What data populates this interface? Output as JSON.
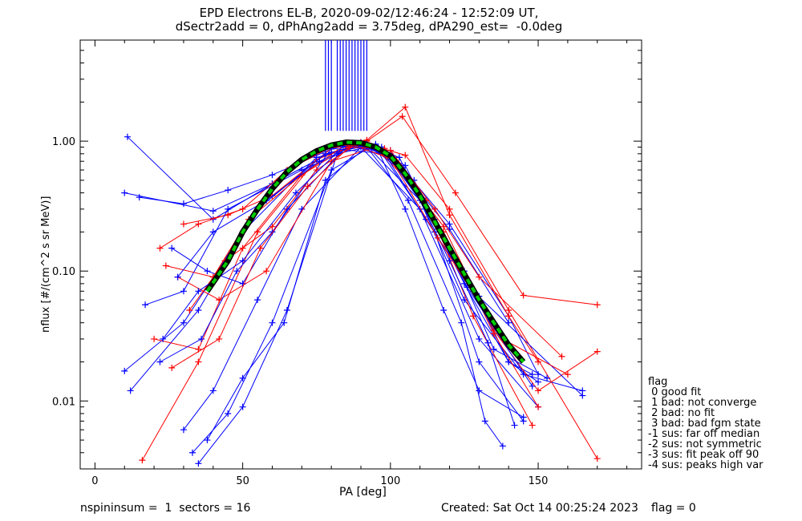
{
  "title_line1": "EPD Electrons EL-B, 2020-09-02/12:46:24 - 12:52:09 UT,",
  "title_line2": "dSectr2add = 0, dPhAng2add = 3.75deg, dPA290_est=  -0.0deg",
  "footer_left": "nspininsum =  1  sectors = 16",
  "footer_created": "Created: Sat Oct 14 00:25:24 2023",
  "footer_flag": "flag = 0",
  "flag_legend": [
    "flag",
    " 0 good fit",
    " 1 bad: not converge",
    " 2 bad: no fit",
    " 3 bad: bad fgm state",
    "-1 sus: far off median",
    "-2 sus: not symmetric",
    "-3 sus: fit peak off 90",
    "-4 sus: peaks high var"
  ],
  "chart_data": {
    "type": "line",
    "xlabel": "PA [deg]",
    "ylabel": "nflux [#/(cm^2 s sr MeV)]",
    "xlim": [
      -5,
      185
    ],
    "ylim": [
      0.003,
      6.0
    ],
    "yscale": "log",
    "xticks": [
      "0",
      "50",
      "100",
      "150"
    ],
    "yticks": [
      "0.01",
      "0.10",
      "1.00"
    ],
    "colors": {
      "blue": "#0000ff",
      "red": "#ff0000",
      "fit_black": "#000000",
      "fit_green": "#00cc00"
    },
    "fit_curve": {
      "name": "",
      "x": [
        38,
        45,
        50,
        55,
        60,
        65,
        70,
        75,
        80,
        85,
        90,
        95,
        100,
        105,
        110,
        115,
        120,
        125,
        130,
        135,
        140,
        145
      ],
      "y": [
        0.07,
        0.12,
        0.2,
        0.3,
        0.43,
        0.58,
        0.72,
        0.84,
        0.93,
        0.98,
        0.97,
        0.9,
        0.77,
        0.56,
        0.38,
        0.24,
        0.15,
        0.095,
        0.06,
        0.04,
        0.027,
        0.02
      ]
    },
    "spikes": {
      "x": [
        78,
        79,
        80,
        82,
        83,
        84,
        85,
        86,
        87,
        88,
        89,
        90,
        91,
        92
      ],
      "y_from": 1.2,
      "y_to": 6.0
    },
    "series": [
      {
        "color": "blue",
        "x": [
          10,
          40,
          60,
          80,
          90,
          100,
          120,
          140,
          150
        ],
        "y": [
          0.4,
          0.29,
          0.47,
          0.82,
          0.93,
          0.8,
          0.23,
          0.045,
          0.016
        ]
      },
      {
        "color": "blue",
        "x": [
          11,
          40,
          60,
          80,
          90,
          100,
          120,
          140
        ],
        "y": [
          1.08,
          0.25,
          0.47,
          0.82,
          0.92,
          0.78,
          0.21,
          0.04
        ]
      },
      {
        "color": "blue",
        "x": [
          15,
          30,
          45,
          60,
          80,
          90,
          100,
          115,
          130
        ],
        "y": [
          0.37,
          0.33,
          0.42,
          0.55,
          0.87,
          0.98,
          0.72,
          0.25,
          0.064
        ]
      },
      {
        "color": "red",
        "x": [
          22,
          35,
          50,
          65,
          80,
          92,
          105,
          120,
          140,
          150
        ],
        "y": [
          0.15,
          0.23,
          0.3,
          0.6,
          0.9,
          1.02,
          1.83,
          0.27,
          0.045,
          0.02
        ]
      },
      {
        "color": "red",
        "x": [
          30,
          45,
          60,
          80,
          92,
          104,
          122,
          145,
          170
        ],
        "y": [
          0.23,
          0.27,
          0.38,
          0.88,
          1.0,
          1.55,
          0.4,
          0.065,
          0.055
        ]
      },
      {
        "color": "red",
        "x": [
          16,
          35,
          55,
          75,
          90,
          105,
          120,
          140,
          170
        ],
        "y": [
          0.0035,
          0.02,
          0.2,
          0.72,
          0.98,
          0.78,
          0.3,
          0.05,
          0.0036
        ]
      },
      {
        "color": "blue",
        "x": [
          12,
          35,
          55,
          78,
          92,
          110,
          125,
          145,
          165
        ],
        "y": [
          0.012,
          0.05,
          0.3,
          0.8,
          0.92,
          0.35,
          0.06,
          0.016,
          0.012
        ]
      },
      {
        "color": "blue",
        "x": [
          10,
          30,
          50,
          75,
          92,
          108,
          125,
          140,
          148
        ],
        "y": [
          0.017,
          0.04,
          0.2,
          0.75,
          0.95,
          0.5,
          0.1,
          0.02,
          0.016
        ]
      },
      {
        "color": "blue",
        "x": [
          17,
          30,
          45,
          70,
          90,
          105,
          125,
          140,
          150
        ],
        "y": [
          0.055,
          0.07,
          0.3,
          0.6,
          0.94,
          0.65,
          0.08,
          0.02,
          0.014
        ]
      },
      {
        "color": "red",
        "x": [
          20,
          35,
          50,
          70,
          85,
          100,
          118,
          135,
          150,
          170
        ],
        "y": [
          0.03,
          0.025,
          0.15,
          0.55,
          0.95,
          0.75,
          0.22,
          0.035,
          0.012,
          0.024
        ]
      },
      {
        "color": "blue",
        "x": [
          30,
          40,
          55,
          70,
          90,
          110,
          130,
          150
        ],
        "y": [
          0.006,
          0.012,
          0.06,
          0.3,
          0.9,
          0.3,
          0.03,
          0.009
        ]
      },
      {
        "color": "blue",
        "x": [
          33,
          45,
          60,
          80,
          95,
          115,
          130,
          145
        ],
        "y": [
          0.004,
          0.008,
          0.04,
          0.6,
          0.95,
          0.2,
          0.02,
          0.007
        ]
      },
      {
        "color": "red",
        "x": [
          28,
          42,
          58,
          80,
          95,
          112,
          128,
          148
        ],
        "y": [
          0.09,
          0.06,
          0.1,
          0.7,
          0.9,
          0.35,
          0.045,
          0.0065
        ]
      },
      {
        "color": "blue",
        "x": [
          26,
          38,
          50,
          65,
          85,
          100,
          120,
          135,
          153
        ],
        "y": [
          0.15,
          0.1,
          0.08,
          0.3,
          0.9,
          0.85,
          0.15,
          0.025,
          0.015
        ]
      },
      {
        "color": "blue",
        "x": [
          35,
          50,
          65,
          82,
          95,
          105,
          118,
          130,
          145
        ],
        "y": [
          0.0033,
          0.009,
          0.05,
          0.8,
          0.93,
          0.3,
          0.05,
          0.012,
          0.0075
        ]
      },
      {
        "color": "red",
        "x": [
          24,
          40,
          52,
          70,
          86,
          100,
          115,
          130,
          158
        ],
        "y": [
          0.11,
          0.09,
          0.25,
          0.55,
          0.92,
          0.85,
          0.3,
          0.09,
          0.022
        ]
      },
      {
        "color": "blue",
        "x": [
          22,
          36,
          48,
          60,
          80,
          98,
          112,
          128,
          165
        ],
        "y": [
          0.02,
          0.03,
          0.1,
          0.2,
          0.88,
          0.8,
          0.25,
          0.07,
          0.011
        ]
      },
      {
        "color": "blue",
        "x": [
          28,
          40,
          58,
          76,
          90,
          103,
          120,
          133,
          142
        ],
        "y": [
          0.09,
          0.2,
          0.35,
          0.7,
          0.97,
          0.75,
          0.12,
          0.028,
          0.0065
        ]
      },
      {
        "color": "red",
        "x": [
          32,
          44,
          60,
          75,
          88,
          102,
          118,
          135,
          150
        ],
        "y": [
          0.05,
          0.12,
          0.22,
          0.6,
          0.93,
          0.7,
          0.2,
          0.033,
          0.009
        ]
      },
      {
        "color": "blue",
        "x": [
          38,
          50,
          64,
          78,
          92,
          106,
          124,
          132,
          138
        ],
        "y": [
          0.005,
          0.015,
          0.04,
          0.5,
          0.9,
          0.35,
          0.04,
          0.007,
          0.0045
        ]
      },
      {
        "color": "blue",
        "x": [
          23,
          35,
          50,
          68,
          84,
          97,
          113,
          126,
          148
        ],
        "y": [
          0.03,
          0.07,
          0.12,
          0.4,
          0.91,
          0.9,
          0.28,
          0.075,
          0.013
        ]
      },
      {
        "color": "red",
        "x": [
          26,
          42,
          56,
          72,
          86,
          98,
          116,
          138,
          160
        ],
        "y": [
          0.018,
          0.03,
          0.15,
          0.45,
          0.9,
          0.88,
          0.18,
          0.03,
          0.016
        ]
      }
    ]
  }
}
